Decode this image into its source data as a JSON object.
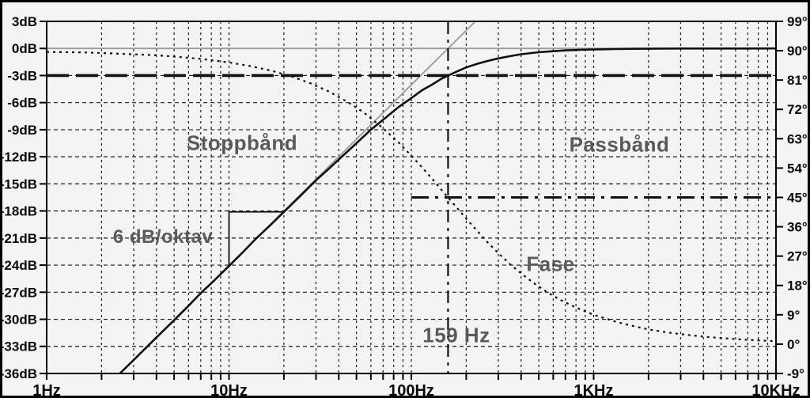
{
  "figure": {
    "background": "#f4f4f4",
    "frame_color": "#000000",
    "grid_color": "#1c1c1c",
    "curve_color": "#111111",
    "asymptote_color": "#9b9b9b",
    "annotation_color": "#5a5a5a"
  },
  "annotations": {
    "stopband": "Stoppbånd",
    "passband": "Passbånd",
    "slope": "6 dB/oktav",
    "phase": "Fase",
    "cutoff": "159 Hz"
  },
  "axes": {
    "x": {
      "labels": [
        "1Hz",
        "10Hz",
        "100Hz",
        "1KHz",
        "10KHz"
      ],
      "values": [
        1,
        10,
        100,
        1000,
        10000
      ]
    },
    "y_left": {
      "labels": [
        "3dB",
        "0dB",
        "-3dB",
        "-6dB",
        "-9dB",
        "-12dB",
        "-15dB",
        "-18dB",
        "-21dB",
        "-24dB",
        "-27dB",
        "-30dB",
        "-33dB",
        "-36dB"
      ],
      "values": [
        3,
        0,
        -3,
        -6,
        -9,
        -12,
        -15,
        -18,
        -21,
        -24,
        -27,
        -30,
        -33,
        -36
      ]
    },
    "y_right": {
      "labels": [
        "99°",
        "90°",
        "81°",
        "72°",
        "63°",
        "54°",
        "45°",
        "36°",
        "27°",
        "18°",
        "9°",
        "0°",
        "-9°"
      ],
      "values": [
        99,
        90,
        81,
        72,
        63,
        54,
        45,
        36,
        27,
        18,
        9,
        0,
        -9
      ]
    }
  },
  "chart_data": {
    "type": "line",
    "x_scale": "log",
    "x_range_hz": [
      1,
      10000
    ],
    "y_left_unit": "dB",
    "y_left_range": [
      -36,
      3
    ],
    "y_right_unit": "deg",
    "y_right_range": [
      -9,
      99
    ],
    "grid": true,
    "cutoff_hz": 159,
    "reference_lines": {
      "minus_3db_level": -3,
      "cutoff_vline_hz": 159,
      "phase_45_deg": 45,
      "phase_45_from_hz": 100
    },
    "slope_marker": {
      "freqs_hz": [
        10,
        20
      ],
      "db": [
        -24.1,
        -18.1
      ]
    },
    "asymptotes": [
      {
        "name": "rising_6db_per_octave",
        "points": [
          [
            2.52,
            -36
          ],
          [
            224.5,
            3
          ]
        ]
      },
      {
        "name": "flat_0db",
        "points": [
          [
            1,
            0
          ],
          [
            10000,
            0
          ]
        ]
      }
    ],
    "series": [
      {
        "name": "magnitude_dB",
        "axis": "left",
        "style": "solid",
        "points": [
          [
            2.52,
            -36
          ],
          [
            3,
            -34.5
          ],
          [
            4,
            -32
          ],
          [
            5,
            -30.1
          ],
          [
            6,
            -28.5
          ],
          [
            7,
            -27.1
          ],
          [
            8,
            -26
          ],
          [
            10,
            -24.1
          ],
          [
            12,
            -22.5
          ],
          [
            14,
            -21.1
          ],
          [
            17,
            -19.5
          ],
          [
            20,
            -18.1
          ],
          [
            25,
            -16.2
          ],
          [
            30,
            -14.6
          ],
          [
            35,
            -13.4
          ],
          [
            40,
            -12.3
          ],
          [
            50,
            -10.5
          ],
          [
            60,
            -9
          ],
          [
            70,
            -7.9
          ],
          [
            85,
            -6.5
          ],
          [
            100,
            -5.5
          ],
          [
            115,
            -4.6
          ],
          [
            130,
            -4
          ],
          [
            145,
            -3.4
          ],
          [
            159,
            -3
          ],
          [
            180,
            -2.5
          ],
          [
            200,
            -2.1
          ],
          [
            230,
            -1.7
          ],
          [
            260,
            -1.4
          ],
          [
            300,
            -1.1
          ],
          [
            350,
            -0.85
          ],
          [
            400,
            -0.64
          ],
          [
            500,
            -0.42
          ],
          [
            600,
            -0.3
          ],
          [
            700,
            -0.22
          ],
          [
            850,
            -0.15
          ],
          [
            1000,
            -0.11
          ],
          [
            1300,
            -0.07
          ],
          [
            1600,
            -0.04
          ],
          [
            2000,
            -0.03
          ],
          [
            3000,
            -0.01
          ],
          [
            5000,
            -0.005
          ],
          [
            7000,
            -0.002
          ],
          [
            10000,
            -0.001
          ]
        ]
      },
      {
        "name": "phase_deg",
        "axis": "right",
        "style": "dotted",
        "points": [
          [
            1,
            89.6
          ],
          [
            1.5,
            89.5
          ],
          [
            2,
            89.3
          ],
          [
            3,
            88.9
          ],
          [
            4,
            88.6
          ],
          [
            5,
            88.2
          ],
          [
            7,
            87.5
          ],
          [
            10,
            86.4
          ],
          [
            13,
            85.3
          ],
          [
            17,
            83.9
          ],
          [
            22,
            82.1
          ],
          [
            28,
            80
          ],
          [
            35,
            77.6
          ],
          [
            45,
            74.2
          ],
          [
            55,
            71
          ],
          [
            70,
            66.2
          ],
          [
            85,
            61.9
          ],
          [
            100,
            57.8
          ],
          [
            115,
            54.1
          ],
          [
            130,
            50.7
          ],
          [
            145,
            47.6
          ],
          [
            159,
            45
          ],
          [
            180,
            41.5
          ],
          [
            200,
            38.5
          ],
          [
            230,
            34.7
          ],
          [
            260,
            31.4
          ],
          [
            300,
            27.9
          ],
          [
            350,
            24.4
          ],
          [
            400,
            21.7
          ],
          [
            470,
            18.7
          ],
          [
            550,
            16.1
          ],
          [
            650,
            13.7
          ],
          [
            800,
            11.2
          ],
          [
            1000,
            9
          ],
          [
            1300,
            7
          ],
          [
            1600,
            5.7
          ],
          [
            2000,
            4.5
          ],
          [
            2600,
            3.5
          ],
          [
            3300,
            2.8
          ],
          [
            4200,
            2.2
          ],
          [
            5500,
            1.7
          ],
          [
            7000,
            1.3
          ],
          [
            8500,
            1.1
          ],
          [
            10000,
            0.9
          ]
        ]
      }
    ]
  }
}
